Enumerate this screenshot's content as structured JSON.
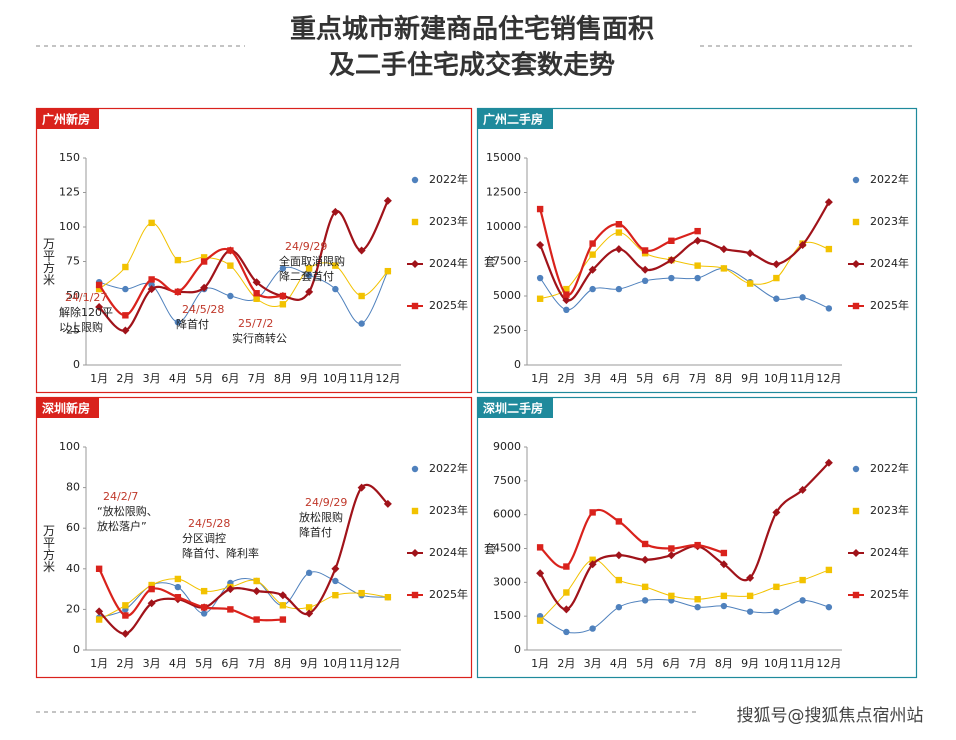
{
  "header": {
    "title": [
      "重点城市新建商品住宅销售面积",
      "及二手住宅成交套数走势"
    ]
  },
  "chart_data": [
    {
      "type": "line",
      "title": "广州新房",
      "frame_color": "#d9221c",
      "y_label": "万平方米",
      "categories": [
        "1月",
        "2月",
        "3月",
        "4月",
        "5月",
        "6月",
        "7月",
        "8月",
        "9月",
        "10月",
        "11月",
        "12月"
      ],
      "ylim": [
        0,
        150
      ],
      "yticks": [
        0,
        25,
        50,
        75,
        100,
        125,
        150
      ],
      "series": [
        {
          "name": "2022年",
          "color": "#4f81bd",
          "marker": "circle",
          "values": [
            60,
            55,
            58,
            31,
            55,
            50,
            48,
            70,
            65,
            55,
            30,
            68
          ]
        },
        {
          "name": "2023年",
          "color": "#f2c200",
          "marker": "square",
          "values": [
            55,
            71,
            103,
            76,
            78,
            72,
            48,
            44,
            70,
            72,
            50,
            68
          ]
        },
        {
          "name": "2024年",
          "color": "#a0131a",
          "marker": "diamond",
          "values": [
            42,
            25,
            55,
            53,
            56,
            83,
            60,
            50,
            53,
            111,
            83,
            119
          ]
        },
        {
          "name": "2025年",
          "color": "#d9221c",
          "marker": "square",
          "values": [
            58,
            36,
            62,
            53,
            75,
            83,
            52,
            50,
            null,
            null,
            null,
            null
          ]
        }
      ],
      "annotations": [
        {
          "date": "24/1/27",
          "text": [
            "解除120平",
            "以上限购"
          ]
        },
        {
          "date": "24/5/28",
          "text": [
            "降首付"
          ]
        },
        {
          "date": "25/7/2",
          "text": [
            "实行商转公"
          ]
        },
        {
          "date": "24/9/29",
          "text": [
            "全面取消限购",
            "降二套首付"
          ]
        }
      ]
    },
    {
      "type": "line",
      "title": "广州二手房",
      "frame_color": "#1f8a9c",
      "y_label": "套",
      "categories": [
        "1月",
        "2月",
        "3月",
        "4月",
        "5月",
        "6月",
        "7月",
        "8月",
        "9月",
        "10月",
        "11月",
        "12月"
      ],
      "ylim": [
        0,
        15000
      ],
      "yticks": [
        0,
        2500,
        5000,
        7500,
        10000,
        12500,
        15000
      ],
      "series": [
        {
          "name": "2022年",
          "color": "#4f81bd",
          "marker": "circle",
          "values": [
            6300,
            4000,
            5500,
            5500,
            6100,
            6300,
            6300,
            7000,
            6000,
            4800,
            4900,
            4100
          ]
        },
        {
          "name": "2023年",
          "color": "#f2c200",
          "marker": "square",
          "values": [
            4800,
            5500,
            8000,
            9600,
            8100,
            7600,
            7200,
            7000,
            5900,
            6300,
            8800,
            8400
          ]
        },
        {
          "name": "2024年",
          "color": "#a0131a",
          "marker": "diamond",
          "values": [
            8700,
            4700,
            6900,
            8400,
            6900,
            7600,
            9000,
            8400,
            8100,
            7300,
            8700,
            11800
          ]
        },
        {
          "name": "2025年",
          "color": "#d9221c",
          "marker": "square",
          "values": [
            11300,
            5100,
            8800,
            10200,
            8300,
            9000,
            9700,
            null,
            null,
            null,
            null,
            null
          ]
        }
      ],
      "annotations": []
    },
    {
      "type": "line",
      "title": "深圳新房",
      "frame_color": "#d9221c",
      "y_label": "万平方米",
      "categories": [
        "1月",
        "2月",
        "3月",
        "4月",
        "5月",
        "6月",
        "7月",
        "8月",
        "9月",
        "10月",
        "11月",
        "12月"
      ],
      "ylim": [
        0,
        100
      ],
      "yticks": [
        0,
        20,
        40,
        60,
        80,
        100
      ],
      "series": [
        {
          "name": "2022年",
          "color": "#4f81bd",
          "marker": "circle",
          "values": [
            16,
            20,
            32,
            31,
            18,
            33,
            34,
            22,
            38,
            34,
            27,
            26
          ]
        },
        {
          "name": "2023年",
          "color": "#f2c200",
          "marker": "square",
          "values": [
            15,
            22,
            32,
            35,
            29,
            31,
            34,
            22,
            21,
            27,
            28,
            26
          ]
        },
        {
          "name": "2024年",
          "color": "#a0131a",
          "marker": "diamond",
          "values": [
            19,
            8,
            23,
            25,
            21,
            30,
            29,
            27,
            18,
            40,
            80,
            72
          ]
        },
        {
          "name": "2025年",
          "color": "#d9221c",
          "marker": "square",
          "values": [
            40,
            17,
            30,
            26,
            21,
            20,
            15,
            15,
            null,
            null,
            null,
            null
          ]
        }
      ],
      "annotations": [
        {
          "date": "24/2/7",
          "text": [
            "“放松限购、",
            "放松落户”"
          ]
        },
        {
          "date": "24/5/28",
          "text": [
            "分区调控",
            "降首付、降利率"
          ]
        },
        {
          "date": "24/9/29",
          "text": [
            "放松限购",
            "降首付"
          ]
        }
      ]
    },
    {
      "type": "line",
      "title": "深圳二手房",
      "frame_color": "#1f8a9c",
      "y_label": "套",
      "categories": [
        "1月",
        "2月",
        "3月",
        "4月",
        "5月",
        "6月",
        "7月",
        "8月",
        "9月",
        "10月",
        "11月",
        "12月"
      ],
      "ylim": [
        0,
        9000
      ],
      "yticks": [
        0,
        1500,
        3000,
        4500,
        6000,
        7500,
        9000
      ],
      "series": [
        {
          "name": "2022年",
          "color": "#4f81bd",
          "marker": "circle",
          "values": [
            1500,
            800,
            950,
            1900,
            2200,
            2200,
            1900,
            1950,
            1700,
            1700,
            2200,
            1900
          ]
        },
        {
          "name": "2023年",
          "color": "#f2c200",
          "marker": "square",
          "values": [
            1300,
            2550,
            4000,
            3100,
            2800,
            2400,
            2250,
            2400,
            2400,
            2800,
            3100,
            3550
          ]
        },
        {
          "name": "2024年",
          "color": "#a0131a",
          "marker": "diamond",
          "values": [
            3400,
            1800,
            3800,
            4200,
            4000,
            4200,
            4600,
            3800,
            3200,
            6100,
            7100,
            8300
          ]
        },
        {
          "name": "2025年",
          "color": "#d9221c",
          "marker": "square",
          "values": [
            4550,
            3700,
            6100,
            5700,
            4700,
            4500,
            4650,
            4300,
            null,
            null,
            null,
            null
          ]
        }
      ],
      "annotations": []
    }
  ],
  "footer": {
    "watermark": "搜狐号@搜狐焦点宿州站"
  }
}
